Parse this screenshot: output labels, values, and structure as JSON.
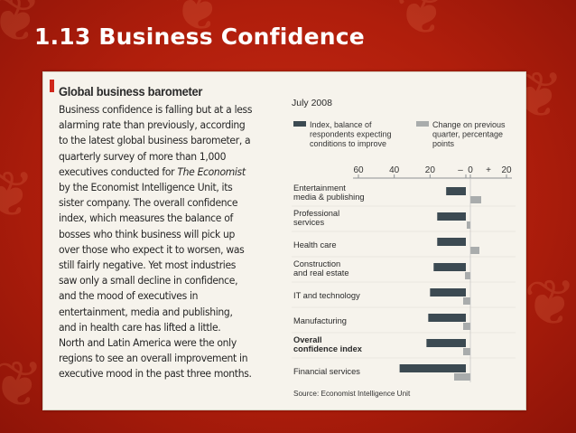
{
  "slide": {
    "title": "1.13 Business Confidence"
  },
  "article": {
    "heading": "Global business barometer",
    "body_lines": [
      "Business confidence is falling but at a less",
      "alarming rate than previously, according",
      "to the latest global business barometer, a",
      "quarterly survey of more than 1,000",
      "executives conducted for The Economist",
      "by the Economist Intelligence Unit, its",
      "sister company. The overall confidence",
      "index, which measures the balance of",
      "bosses who think business will pick up",
      "over those who expect it to worsen, was",
      "still fairly negative. Yet most industries",
      "saw only a small decline in confidence,",
      "and the mood of executives in",
      "entertainment, media and publishing,",
      "and in health care has lifted a little.",
      "North and Latin America were the only",
      "regions to see an overall improvement in",
      "executive mood in the past three months."
    ]
  },
  "chart_data": {
    "type": "bar",
    "title": "July 2008",
    "source": "Source: Economist Intelligence Unit",
    "legend": [
      {
        "name": "Index, balance of respondents expecting conditions to improve",
        "lines": [
          "Index, balance of",
          "respondents expecting",
          "conditions to improve"
        ],
        "color": "#3c4a52"
      },
      {
        "name": "Change on previous quarter, percentage points",
        "lines": [
          "Change on previous",
          "quarter, percentage",
          "points"
        ],
        "color": "#a9acac"
      }
    ],
    "index_axis": {
      "ticks": [
        60,
        40,
        20,
        0
      ],
      "tick_labels": [
        "60",
        "40",
        "20",
        "–"
      ],
      "range": [
        -65,
        0
      ]
    },
    "change_axis": {
      "ticks": [
        0,
        20
      ],
      "tick_labels": [
        "0",
        "+",
        "20"
      ],
      "range": [
        -10,
        20
      ]
    },
    "categories": [
      {
        "lines": [
          "Entertainment",
          "media & publishing"
        ],
        "index": -11,
        "change": 6
      },
      {
        "lines": [
          "Professional",
          "services"
        ],
        "index": -16,
        "change": -2
      },
      {
        "lines": [
          "Health care"
        ],
        "index": -16,
        "change": 5
      },
      {
        "lines": [
          "Construction",
          "and real estate"
        ],
        "index": -18,
        "change": -3
      },
      {
        "lines": [
          "IT and technology"
        ],
        "index": -20,
        "change": -4
      },
      {
        "lines": [
          "Manufacturing"
        ],
        "index": -21,
        "change": -4
      },
      {
        "lines": [
          "Overall",
          "confidence index"
        ],
        "index": -22,
        "change": -4
      },
      {
        "lines": [
          "Financial services"
        ],
        "index": -37,
        "change": -9
      }
    ],
    "colors": {
      "index": "#3c4a52",
      "change": "#a9acac",
      "axis": "#8d9194"
    },
    "grid": false
  }
}
